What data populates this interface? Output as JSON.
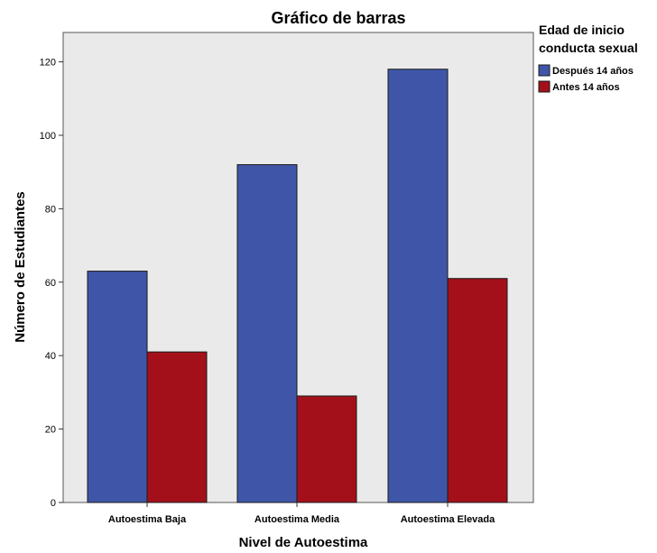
{
  "chart_data": {
    "type": "bar",
    "title": "Gráfico de barras",
    "xlabel": "Nivel de Autoestima",
    "ylabel": "Número de Estudiantes",
    "categories": [
      "Autoestima Baja",
      "Autoestima Media",
      "Autoestima Elevada"
    ],
    "series": [
      {
        "name": "Después 14 años",
        "color": "#3f56a8",
        "values": [
          63,
          92,
          118
        ]
      },
      {
        "name": "Antes 14 años",
        "color": "#a3101a",
        "values": [
          41,
          29,
          61
        ]
      }
    ],
    "ylim": [
      0,
      128
    ],
    "yticks": [
      0,
      20,
      40,
      60,
      80,
      100,
      120
    ],
    "grid": false,
    "legend": {
      "title_lines": [
        "Edad de inicio",
        "conducta sexual"
      ],
      "placement": "top-right"
    },
    "plot_background": "#eaeaea"
  }
}
